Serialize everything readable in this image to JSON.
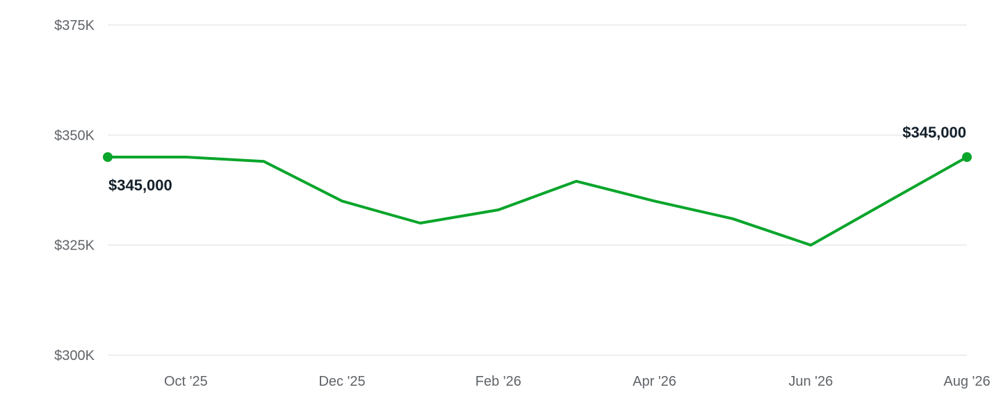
{
  "chart_data": {
    "type": "line",
    "x": [
      "Sep '25",
      "Oct '25",
      "Nov '25",
      "Dec '25",
      "Jan '26",
      "Feb '26",
      "Mar '26",
      "Apr '26",
      "May '26",
      "Jun '26",
      "Jul '26",
      "Aug '26"
    ],
    "x_tick_labels": [
      "Oct '25",
      "Dec '25",
      "Feb '26",
      "Apr '26",
      "Jun '26",
      "Aug '26"
    ],
    "series": [
      {
        "values": [
          345000,
          345000,
          344000,
          335000,
          330000,
          333000,
          339500,
          335000,
          331000,
          325000,
          335000,
          345000
        ]
      }
    ],
    "ylim": [
      300000,
      375000
    ],
    "y_ticks": [
      300000,
      325000,
      350000,
      375000
    ],
    "y_tick_labels": [
      "$300K",
      "$325K",
      "$350K",
      "$375K"
    ],
    "data_labels": {
      "start": "$345,000",
      "end": "$345,000"
    },
    "grid": true,
    "legend": "none",
    "colors": {
      "line": "#0aa52b",
      "grid": "#e6e8ec",
      "tick_text": "#5f6368",
      "label_text": "#13202b"
    }
  }
}
